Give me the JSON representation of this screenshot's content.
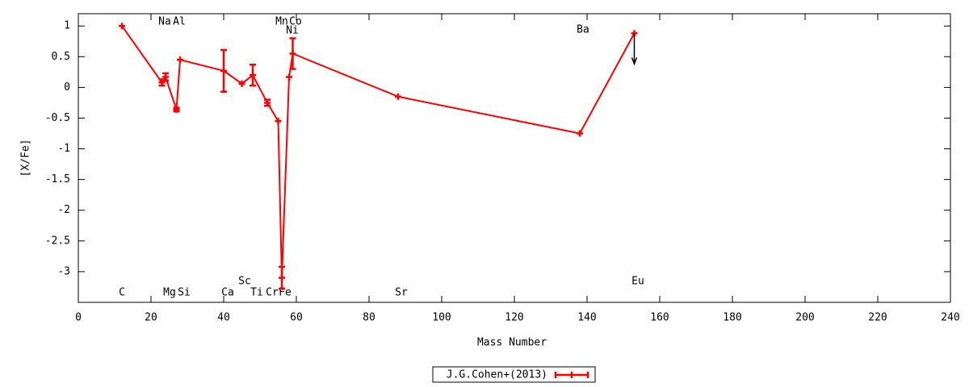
{
  "chart_data": {
    "type": "line",
    "xlabel": "Mass Number",
    "ylabel": "[X/Fe]",
    "x": [
      12,
      23,
      24,
      27,
      28,
      40,
      45,
      48,
      52,
      55,
      56,
      58,
      59,
      88,
      138,
      153
    ],
    "series": [
      {
        "name": "J.G.Cohen+(2013)",
        "color": "#ff0000",
        "values": [
          1.0,
          0.08,
          0.17,
          -0.36,
          0.45,
          0.27,
          0.06,
          0.2,
          -0.25,
          -0.55,
          -3.1,
          0.17,
          0.55,
          -0.15,
          -0.75,
          0.88
        ],
        "errors": [
          null,
          0.05,
          0.06,
          0.03,
          null,
          0.34,
          null,
          0.17,
          0.05,
          null,
          0.18,
          null,
          0.25,
          null,
          null,
          null
        ],
        "upper_limits": [
          false,
          false,
          false,
          false,
          false,
          false,
          false,
          false,
          false,
          false,
          false,
          false,
          false,
          false,
          false,
          true
        ]
      }
    ],
    "annotations": [
      "C",
      "Na",
      "Al",
      "Mg",
      "Si",
      "Ca",
      "Sc",
      "Ti",
      "Cr",
      "Fe",
      "Mn",
      "Co",
      "Ni",
      "Sr",
      "Ba",
      "Eu"
    ],
    "xlim": [
      0,
      240
    ],
    "ylim": [
      -3.5,
      1.2
    ],
    "xticks": [
      0,
      20,
      40,
      60,
      80,
      100,
      120,
      140,
      160,
      180,
      200,
      220,
      240
    ],
    "yticks": [
      1,
      0.5,
      0,
      -0.5,
      -1,
      -1.5,
      -2,
      -2.5,
      -3
    ],
    "grid": false,
    "legend": "bottom"
  }
}
